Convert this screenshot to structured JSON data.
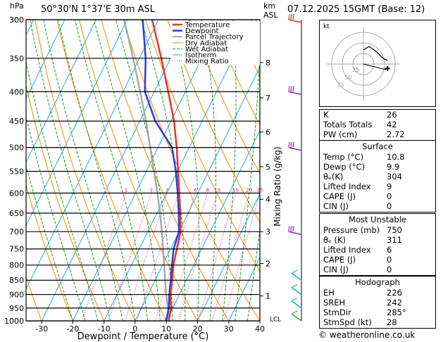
{
  "header": {
    "location": "50°30'N  1°37'E  30m  ASL",
    "date": "07.12.2025  15GMT  (Base: 12)",
    "hpa_label": "hPa",
    "km_label": "km",
    "asl_label": "ASL"
  },
  "chart_data": {
    "type": "skew-t",
    "xlabel": "Dewpoint / Temperature (°C)",
    "ylabel": "Mixing Ratio (g/kg)",
    "xlim": [
      -35,
      40
    ],
    "ylim_hpa": [
      1000,
      300
    ],
    "pressure_levels": [
      300,
      350,
      400,
      450,
      500,
      550,
      600,
      650,
      700,
      750,
      800,
      850,
      900,
      950,
      1000
    ],
    "temp_ticks": [
      -30,
      -20,
      -10,
      0,
      10,
      20,
      30,
      40
    ],
    "km_levels": [
      {
        "km": 1,
        "p": 905
      },
      {
        "km": 2,
        "p": 795
      },
      {
        "km": 3,
        "p": 700
      },
      {
        "km": 4,
        "p": 615
      },
      {
        "km": 5,
        "p": 540
      },
      {
        "km": 6,
        "p": 470
      },
      {
        "km": 7,
        "p": 410
      },
      {
        "km": 8,
        "p": 356
      }
    ],
    "lcl_label": "LCL",
    "lcl_p": 990,
    "mixing_ratio_values": [
      1,
      2,
      3,
      4,
      6,
      8,
      10,
      15,
      20,
      25
    ],
    "legend": [
      "Temperature",
      "Dewpoint",
      "Parcel Trajectory",
      "Dry Adiabat",
      "Wet Adiabat",
      "Isotherm",
      "Mixing Ratio"
    ],
    "temperature": {
      "p": [
        1000,
        950,
        900,
        850,
        800,
        750,
        700,
        650,
        600,
        550,
        500,
        450,
        400,
        350,
        300
      ],
      "t": [
        10.8,
        9.5,
        7.2,
        5.5,
        3.5,
        2.0,
        0.5,
        -2.5,
        -6.0,
        -9.8,
        -14.0,
        -19.0,
        -25.5,
        -33.0,
        -42.0
      ]
    },
    "dewpoint": {
      "p": [
        1000,
        950,
        900,
        850,
        800,
        750,
        700,
        650,
        600,
        550,
        500,
        450,
        400,
        350,
        300
      ],
      "t": [
        9.9,
        8.8,
        6.8,
        5.0,
        3.0,
        1.0,
        0.0,
        -3.0,
        -6.5,
        -10.5,
        -15.5,
        -25.0,
        -33.0,
        -38.0,
        -45.0
      ]
    },
    "parcel": {
      "p": [
        1000,
        950,
        900,
        850,
        800,
        750,
        700,
        650,
        600,
        550,
        500,
        450,
        400,
        350,
        300
      ],
      "t": [
        10.8,
        8.5,
        5.8,
        3.2,
        0.5,
        -2.4,
        -5.5,
        -9.0,
        -13.0,
        -17.5,
        -22.5,
        -28.0,
        -34.5,
        -42.0,
        -51.0
      ]
    },
    "colors": {
      "temperature": "#e8352a",
      "dewpoint": "#2a3fd8",
      "parcel": "#a8a8a8",
      "dry": "#f08c00",
      "wet": "#1f9a1f",
      "iso": "#20a8e8",
      "mix": "#e0187c",
      "wind": "#9a22c8"
    },
    "hodograph": {
      "label": "kt",
      "rings": [
        "25",
        "50",
        "75"
      ]
    }
  },
  "indices": {
    "rows": [
      {
        "label": "K",
        "value": "26"
      },
      {
        "label": "Totals Totals",
        "value": "42"
      },
      {
        "label": "PW (cm)",
        "value": "2.72"
      }
    ]
  },
  "surface": {
    "title": "Surface",
    "rows": [
      {
        "label": "Temp (°C)",
        "value": "10.8"
      },
      {
        "label": "Dewp (°C)",
        "value": "9.9"
      },
      {
        "label": "θₑ(K)",
        "value": "304"
      },
      {
        "label": "Lifted Index",
        "value": "9"
      },
      {
        "label": "CAPE (J)",
        "value": "0"
      },
      {
        "label": "CIN (J)",
        "value": "0"
      }
    ]
  },
  "most_unstable": {
    "title": "Most Unstable",
    "rows": [
      {
        "label": "Pressure (mb)",
        "value": "750"
      },
      {
        "label": "θₑ (K)",
        "value": "311"
      },
      {
        "label": "Lifted Index",
        "value": "6"
      },
      {
        "label": "CAPE (J)",
        "value": "0"
      },
      {
        "label": "CIN (J)",
        "value": "0"
      }
    ]
  },
  "hodograph_table": {
    "title": "Hodograph",
    "rows": [
      {
        "label": "EH",
        "value": "226"
      },
      {
        "label": "SREH",
        "value": "242"
      },
      {
        "label": "StmDir",
        "value": "285°"
      },
      {
        "label": "StmSpd (kt)",
        "value": "28"
      }
    ]
  },
  "footer": {
    "copyright": "© weatheronline.co.uk"
  }
}
